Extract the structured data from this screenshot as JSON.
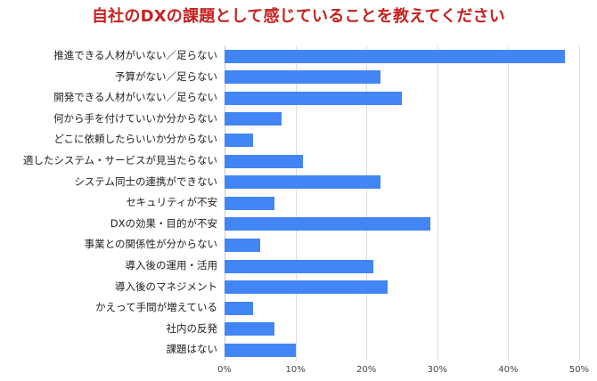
{
  "chart_data": {
    "type": "bar",
    "orientation": "horizontal",
    "title": "自社のDXの課題として感じていることを教えてください",
    "xlabel": "",
    "ylabel": "",
    "xlim": [
      0,
      50
    ],
    "x_ticks": [
      "0%",
      "10%",
      "20%",
      "30%",
      "40%",
      "50%"
    ],
    "grid": true,
    "legend": null,
    "bar_color": "#4285f4",
    "title_color": "#c5221f",
    "categories": [
      "推進できる人材がいない／足らない",
      "予算がない／足らない",
      "開発できる人材がいない／足らない",
      "何から手を付けていいか分からない",
      "どこに依頼したらいいか分からない",
      "適したシステム・サービスが見当たらない",
      "システム同士の連携ができない",
      "セキュリティが不安",
      "DXの効果・目的が不安",
      "事業との関係性が分からない",
      "導入後の運用・活用",
      "導入後のマネジメント",
      "かえって手間が増えている",
      "社内の反発",
      "課題はない"
    ],
    "values": [
      48,
      22,
      25,
      8,
      4,
      11,
      22,
      7,
      29,
      5,
      21,
      23,
      4,
      7,
      10
    ],
    "unit": "%"
  }
}
